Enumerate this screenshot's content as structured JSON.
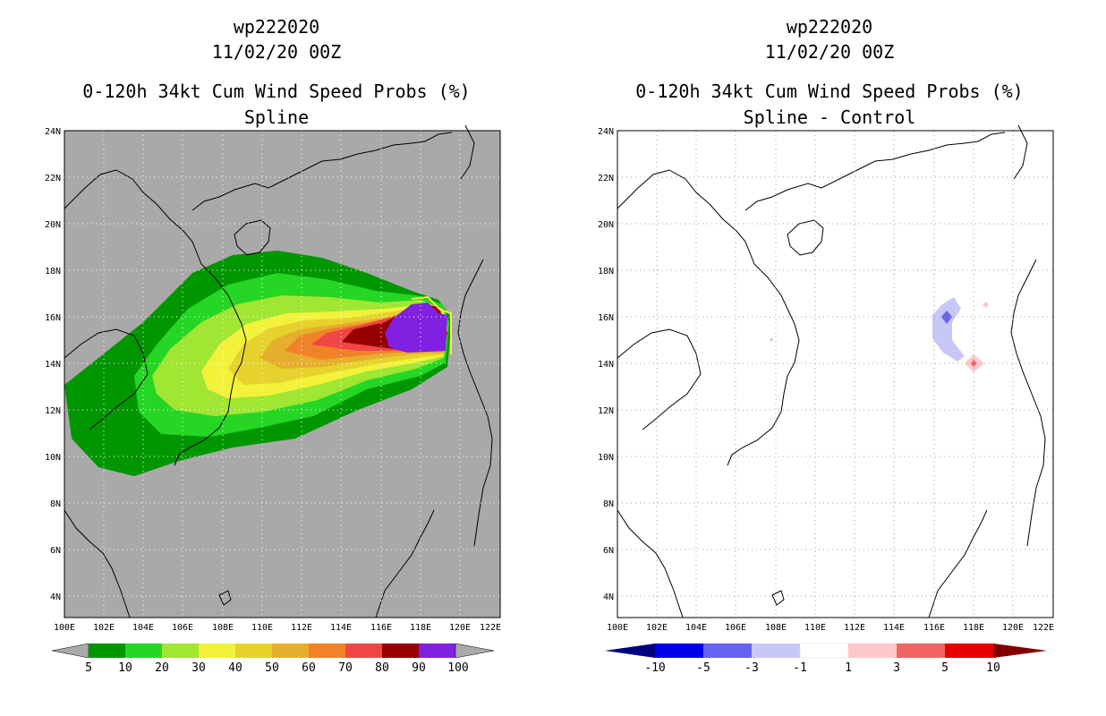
{
  "panels": [
    {
      "id": "spline",
      "storm": "wp222020",
      "datetime": "11/02/20 00Z",
      "product": "0-120h 34kt Cum Wind Speed Probs (%)",
      "subtitle": "Spline",
      "background": "#a9a9a9",
      "colorbar": {
        "labels": [
          "5",
          "10",
          "20",
          "30",
          "40",
          "50",
          "60",
          "70",
          "80",
          "90",
          "100"
        ],
        "colors": [
          "#009600",
          "#25d625",
          "#a0e632",
          "#f2f23a",
          "#e6d22d",
          "#e6ae2d",
          "#f08228",
          "#f04646",
          "#960000",
          "#8020e0"
        ],
        "end_low": "#a9a9a9",
        "end_high": "#a9a9a9"
      }
    },
    {
      "id": "diff",
      "storm": "wp222020",
      "datetime": "11/02/20 00Z",
      "product": "0-120h 34kt Cum Wind Speed Probs (%)",
      "subtitle": "Spline - Control",
      "background": "#ffffff",
      "colorbar": {
        "labels": [
          "-10",
          "-5",
          "-3",
          "-1",
          "1",
          "3",
          "5",
          "10"
        ],
        "colors": [
          "#0000e8",
          "#6464f0",
          "#c8c8f8",
          "#ffffff",
          "#ffc8c8",
          "#f06464",
          "#e80000"
        ],
        "end_low": "#000080",
        "end_high": "#800000"
      }
    }
  ],
  "axes": {
    "lat_labels": [
      "24N",
      "22N",
      "20N",
      "18N",
      "16N",
      "14N",
      "12N",
      "10N",
      "8N",
      "6N",
      "4N"
    ],
    "lon_labels": [
      "100E",
      "102E",
      "104E",
      "106E",
      "108E",
      "110E",
      "112E",
      "114E",
      "116E",
      "118E",
      "120E",
      "122E"
    ]
  }
}
